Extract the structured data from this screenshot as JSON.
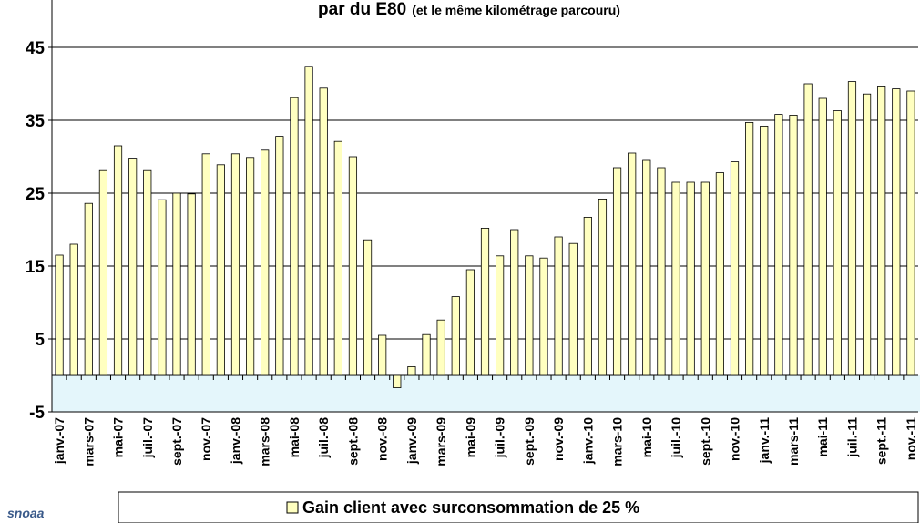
{
  "chart_data": {
    "type": "bar",
    "title": "par du E80",
    "title_note": "(et le même kilométrage parcouru)",
    "categories": [
      "janv.-07",
      null,
      "mars-07",
      null,
      "mai-07",
      null,
      "juil.-07",
      null,
      "sept.-07",
      null,
      "nov.-07",
      null,
      "janv.-08",
      null,
      "mars-08",
      null,
      "mai-08",
      null,
      "juil.-08",
      null,
      "sept.-08",
      null,
      "nov.-08",
      null,
      "janv.-09",
      null,
      "mars-09",
      null,
      "mai-09",
      null,
      "juil.-09",
      null,
      "sept.-09",
      null,
      "nov.-09",
      null,
      "janv.-10",
      null,
      "mars-10",
      null,
      "mai-10",
      null,
      "juil.-10",
      null,
      "sept.-10",
      null,
      "nov.-10",
      null,
      "janv.-11",
      null,
      "mars-11",
      null,
      "mai-11",
      null,
      "juil.-11",
      null,
      "sept.-11",
      null,
      "nov.-11"
    ],
    "series": [
      {
        "name": "Gain client avec surconsommation de 25 %",
        "color": "#ffffc0",
        "values": [
          16.5,
          18,
          23.6,
          28.1,
          31.5,
          29.8,
          28.1,
          24.1,
          25,
          24.9,
          30.4,
          28.9,
          30.4,
          29.9,
          30.9,
          32.8,
          38.1,
          42.4,
          39.4,
          32.1,
          30,
          18.6,
          5.5,
          -1.7,
          1.2,
          5.6,
          7.6,
          10.8,
          14.5,
          20.2,
          16.4,
          20,
          16.4,
          16.1,
          19,
          18.1,
          21.7,
          24.2,
          28.5,
          30.5,
          29.5,
          28.5,
          26.5,
          26.5,
          26.5,
          27.8,
          29.3,
          34.7,
          34.2,
          35.8,
          35.7,
          40,
          38,
          36.3,
          40.3,
          38.6,
          39.7,
          39.3,
          39
        ]
      }
    ],
    "ylim": [
      -5,
      51.5
    ],
    "yticks": [
      -5,
      5,
      15,
      25,
      35,
      45
    ],
    "grid": true,
    "legend": "bottom",
    "logo": "snoaa"
  }
}
